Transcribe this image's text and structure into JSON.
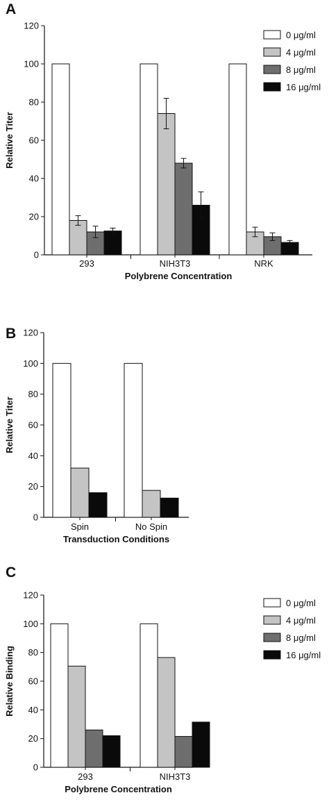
{
  "colors": {
    "s0": "#ffffff",
    "s4": "#c4c4c4",
    "s8": "#6e6e6e",
    "s16": "#0a0a0a",
    "stroke": "#111111"
  },
  "chart_data": [
    {
      "id": "A",
      "panel_label": "A",
      "type": "bar",
      "title": "",
      "ylabel": "Relative Titer",
      "xlabel": "Polybrene Concentration",
      "ylim": [
        0,
        120
      ],
      "yticks": [
        0,
        20,
        40,
        60,
        80,
        100,
        120
      ],
      "grid": false,
      "legend_position": "top-right",
      "categories": [
        "293",
        "NIH3T3",
        "NRK"
      ],
      "series": [
        {
          "key": "s0",
          "name": "0 μg/ml",
          "values": [
            100,
            100,
            100
          ],
          "errors": [
            0,
            0,
            0
          ]
        },
        {
          "key": "s4",
          "name": "4 μg/ml",
          "values": [
            18,
            74,
            12
          ],
          "errors": [
            2.5,
            8,
            2.5
          ]
        },
        {
          "key": "s8",
          "name": "8 μg/ml",
          "values": [
            12,
            48,
            9.5
          ],
          "errors": [
            3,
            2.5,
            2
          ]
        },
        {
          "key": "s16",
          "name": "16 μg/ml",
          "values": [
            12.5,
            26,
            6.5
          ],
          "errors": [
            1.5,
            7,
            1
          ]
        }
      ]
    },
    {
      "id": "B",
      "panel_label": "B",
      "type": "bar",
      "title": "",
      "ylabel": "Relative Titer",
      "xlabel": "Transduction Conditions",
      "ylim": [
        0,
        120
      ],
      "yticks": [
        0,
        20,
        40,
        60,
        80,
        100,
        120
      ],
      "grid": false,
      "legend_position": "none",
      "categories": [
        "Spin",
        "No Spin"
      ],
      "series": [
        {
          "key": "s0",
          "values": [
            100,
            100
          ]
        },
        {
          "key": "s4",
          "values": [
            32,
            17.5
          ]
        },
        {
          "key": "s16",
          "values": [
            16,
            12.5
          ]
        }
      ]
    },
    {
      "id": "C",
      "panel_label": "C",
      "type": "bar",
      "title": "",
      "ylabel": "Relative Binding",
      "xlabel": "Polybrene Concentration",
      "ylim": [
        0,
        120
      ],
      "yticks": [
        0,
        20,
        40,
        60,
        80,
        100,
        120
      ],
      "grid": false,
      "legend_position": "top-right",
      "categories": [
        "293",
        "NIH3T3"
      ],
      "series": [
        {
          "key": "s0",
          "name": "0 μg/ml",
          "values": [
            100,
            100
          ]
        },
        {
          "key": "s4",
          "name": "4 μg/ml",
          "values": [
            70.5,
            76.5
          ]
        },
        {
          "key": "s8",
          "name": "8 μg/ml",
          "values": [
            26,
            21.5
          ]
        },
        {
          "key": "s16",
          "name": "16 μg/ml",
          "values": [
            22,
            31.5
          ]
        }
      ]
    }
  ]
}
